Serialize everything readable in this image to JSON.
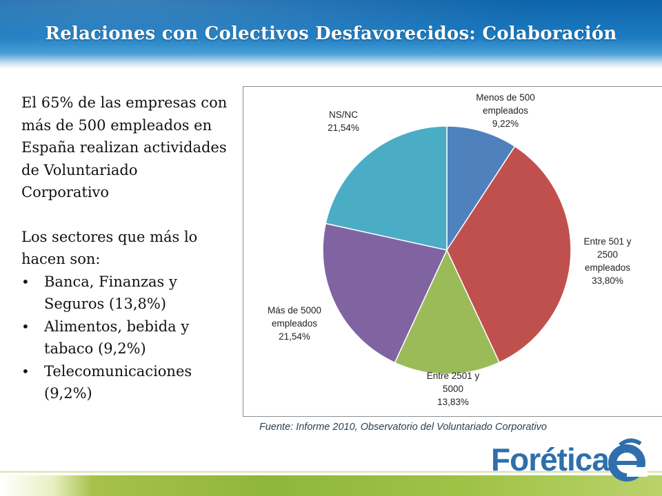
{
  "slide": {
    "title": "Relaciones  con Colectivos Desfavorecidos: Colaboración"
  },
  "body": {
    "paragraph1": "El 65% de las empresas con más de 500 empleados en España realizan actividades de Voluntariado Corporativo",
    "paragraph2": "Los sectores que más lo hacen son:",
    "bullets": [
      "Banca, Finanzas y Seguros (13,8%)",
      "Alimentos, bebida y tabaco (9,2%)",
      "Telecomunicaciones (9,2%)"
    ],
    "bullet_glyph": "•"
  },
  "source": "Fuente: Informe 2010, Observatorio del Voluntariado Corporativo",
  "logo": {
    "text": "Forética",
    "icon": "foretica-e-logo"
  },
  "colors": {
    "header": "#1c7cc2",
    "slice_blue": "#4f81bd",
    "slice_red": "#c0504d",
    "slice_green": "#9bbb59",
    "slice_purple": "#8064a2",
    "slice_teal": "#4bacc6"
  },
  "chart_data": {
    "type": "pie",
    "start": "top, clockwise",
    "slices": [
      {
        "label_lines": [
          "Menos de 500",
          "empleados",
          "9,22%"
        ],
        "value": 9.22,
        "color": "#4f81bd"
      },
      {
        "label_lines": [
          "Entre 501 y",
          "2500",
          "empleados",
          "33,80%"
        ],
        "value": 33.8,
        "color": "#c0504d"
      },
      {
        "label_lines": [
          "Entre 2501 y",
          "5000",
          "13,83%"
        ],
        "value": 13.83,
        "color": "#9bbb59"
      },
      {
        "label_lines": [
          "Más de 5000",
          "empleados",
          "21,54%"
        ],
        "value": 21.54,
        "color": "#8064a2"
      },
      {
        "label_lines": [
          "NS/NC",
          "21,54%"
        ],
        "value": 21.54,
        "color": "#4bacc6"
      }
    ]
  }
}
